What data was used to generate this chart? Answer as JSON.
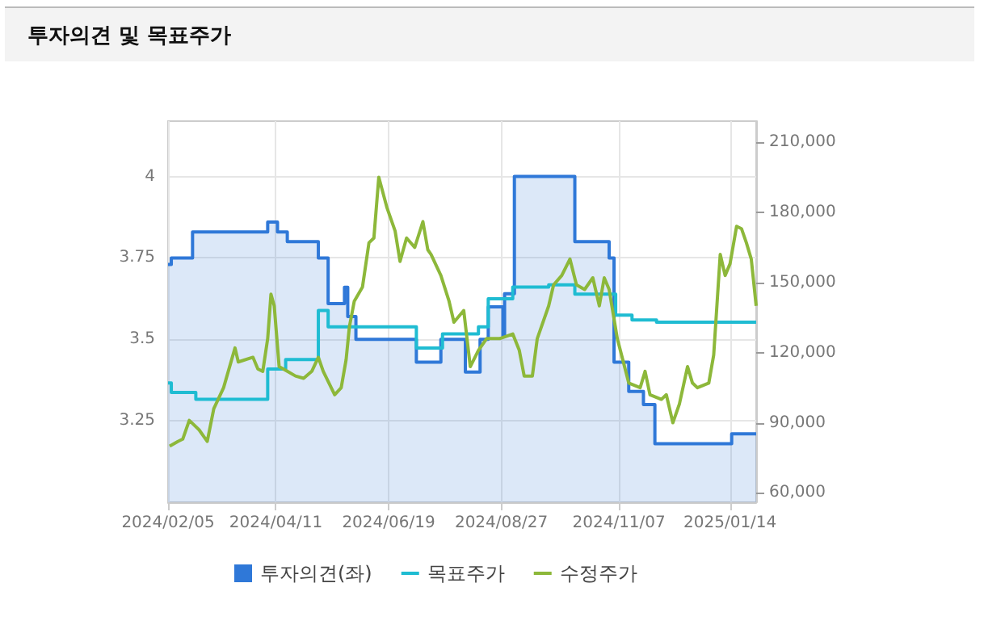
{
  "chart_data": {
    "type": "line",
    "title": "투자의견 및 목표주가",
    "xlim": [
      "2024-02-05",
      "2025-01-30"
    ],
    "xticks": [
      {
        "value": "2024-02-05",
        "label": "2024/02/05"
      },
      {
        "value": "2024-04-11",
        "label": "2024/04/11"
      },
      {
        "value": "2024-06-19",
        "label": "2024/06/19"
      },
      {
        "value": "2024-08-27",
        "label": "2024/08/27"
      },
      {
        "value": "2024-11-07",
        "label": "2024/11/07"
      },
      {
        "value": "2025-01-14",
        "label": "2025/01/14"
      }
    ],
    "ylim": [
      3,
      4.17
    ],
    "yticks": [
      3.25,
      3.5,
      3.75,
      4
    ],
    "y2lim": [
      56000,
      219000
    ],
    "y2ticks": [
      {
        "value": 60000,
        "label": "60,000"
      },
      {
        "value": 90000,
        "label": "90,000"
      },
      {
        "value": 120000,
        "label": "120,000"
      },
      {
        "value": 150000,
        "label": "150,000"
      },
      {
        "value": 180000,
        "label": "180,000"
      },
      {
        "value": 210000,
        "label": "210,000"
      }
    ],
    "grid": true,
    "legend": "bottom",
    "marker": "none",
    "series": [
      {
        "name": "투자의견(좌)",
        "type": "area",
        "color": "#2f78d8",
        "x": [
          "2024-02-05",
          "2024-02-07",
          "2024-02-07",
          "2024-02-20",
          "2024-02-20",
          "2024-04-06",
          "2024-04-06",
          "2024-04-12",
          "2024-04-12",
          "2024-04-18",
          "2024-04-18",
          "2024-05-07",
          "2024-05-07",
          "2024-05-13",
          "2024-05-13",
          "2024-05-23",
          "2024-05-23",
          "2024-05-25",
          "2024-05-25",
          "2024-05-30",
          "2024-05-30",
          "2024-07-06",
          "2024-07-06",
          "2024-07-21",
          "2024-07-21",
          "2024-08-05",
          "2024-08-05",
          "2024-08-14",
          "2024-08-14",
          "2024-08-19",
          "2024-08-19",
          "2024-08-28",
          "2024-08-28",
          "2024-08-29",
          "2024-08-29",
          "2024-09-04",
          "2024-09-04",
          "2024-10-11",
          "2024-10-11",
          "2024-11-01",
          "2024-11-01",
          "2024-11-04",
          "2024-11-04",
          "2024-11-13",
          "2024-11-13",
          "2024-11-22",
          "2024-11-22",
          "2024-11-29",
          "2024-11-29",
          "2025-01-15",
          "2025-01-15",
          "2025-01-30"
        ],
        "values": [
          3.73,
          3.73,
          3.75,
          3.75,
          3.83,
          3.83,
          3.86,
          3.86,
          3.83,
          3.83,
          3.8,
          3.8,
          3.75,
          3.75,
          3.61,
          3.61,
          3.66,
          3.66,
          3.57,
          3.57,
          3.5,
          3.5,
          3.43,
          3.43,
          3.5,
          3.5,
          3.4,
          3.4,
          3.5,
          3.5,
          3.6,
          3.6,
          3.51,
          3.51,
          3.64,
          3.64,
          4.0,
          4.0,
          3.8,
          3.8,
          3.75,
          3.75,
          3.43,
          3.43,
          3.34,
          3.34,
          3.3,
          3.3,
          3.18,
          3.18,
          3.21,
          3.21
        ]
      },
      {
        "name": "목표주가",
        "type": "step",
        "axis": "y2",
        "color": "#1fbcd2",
        "x": [
          "2024-02-05",
          "2024-02-07",
          "2024-02-22",
          "2024-04-06",
          "2024-04-17",
          "2024-05-07",
          "2024-05-13",
          "2024-07-06",
          "2024-07-22",
          "2024-08-13",
          "2024-08-19",
          "2024-09-03",
          "2024-09-25",
          "2024-10-11",
          "2024-11-05",
          "2024-11-15",
          "2024-11-30",
          "2025-01-30"
        ],
        "values": [
          107000,
          103000,
          100000,
          113000,
          117000,
          138000,
          131000,
          122000,
          128000,
          131000,
          143000,
          148000,
          149000,
          145000,
          136000,
          134000,
          133000,
          133000
        ]
      },
      {
        "name": "수정주가",
        "axis": "y2",
        "color": "#8db83a",
        "x": [
          "2024-02-06",
          "2024-02-11",
          "2024-02-14",
          "2024-02-18",
          "2024-02-24",
          "2024-02-29",
          "2024-03-04",
          "2024-03-10",
          "2024-03-17",
          "2024-03-19",
          "2024-03-28",
          "2024-03-31",
          "2024-04-03",
          "2024-04-06",
          "2024-04-08",
          "2024-04-10",
          "2024-04-13",
          "2024-04-18",
          "2024-04-23",
          "2024-04-28",
          "2024-05-03",
          "2024-05-07",
          "2024-05-10",
          "2024-05-17",
          "2024-05-21",
          "2024-05-24",
          "2024-05-26",
          "2024-05-29",
          "2024-06-03",
          "2024-06-07",
          "2024-06-10",
          "2024-06-13",
          "2024-06-18",
          "2024-06-23",
          "2024-06-26",
          "2024-06-30",
          "2024-07-05",
          "2024-07-10",
          "2024-07-13",
          "2024-07-15",
          "2024-07-21",
          "2024-07-26",
          "2024-07-29",
          "2024-08-04",
          "2024-08-08",
          "2024-08-13",
          "2024-08-18",
          "2024-08-26",
          "2024-09-03",
          "2024-09-07",
          "2024-09-10",
          "2024-09-15",
          "2024-09-18",
          "2024-09-25",
          "2024-09-28",
          "2024-10-03",
          "2024-10-08",
          "2024-10-12",
          "2024-10-17",
          "2024-10-22",
          "2024-10-26",
          "2024-10-29",
          "2024-11-01",
          "2024-11-06",
          "2024-11-13",
          "2024-11-20",
          "2024-11-23",
          "2024-11-26",
          "2024-12-03",
          "2024-12-06",
          "2024-12-10",
          "2024-12-14",
          "2024-12-19",
          "2024-12-22",
          "2024-12-25",
          "2025-01-01",
          "2025-01-04",
          "2025-01-08",
          "2025-01-11",
          "2025-01-14",
          "2025-01-18",
          "2025-01-21",
          "2025-01-24",
          "2025-01-27",
          "2025-01-30"
        ],
        "values": [
          80000,
          82000,
          83000,
          91000,
          87000,
          82000,
          96000,
          105000,
          122000,
          116000,
          118000,
          113000,
          112000,
          126000,
          145000,
          140000,
          114000,
          112000,
          110000,
          109000,
          112000,
          118000,
          112000,
          102000,
          105000,
          117000,
          131000,
          142000,
          148000,
          167000,
          169000,
          195000,
          182000,
          172000,
          159000,
          169000,
          165000,
          176000,
          164000,
          162000,
          153000,
          142000,
          133000,
          138000,
          114000,
          121000,
          126000,
          126000,
          128000,
          121000,
          110000,
          110000,
          126000,
          140000,
          149000,
          153000,
          160000,
          149000,
          147000,
          152000,
          140000,
          152000,
          147000,
          126000,
          107000,
          105000,
          112000,
          102000,
          100000,
          102000,
          90000,
          98000,
          114000,
          107000,
          105000,
          107000,
          119000,
          162000,
          153000,
          158000,
          174000,
          173000,
          167000,
          160000,
          140000
        ]
      }
    ]
  }
}
